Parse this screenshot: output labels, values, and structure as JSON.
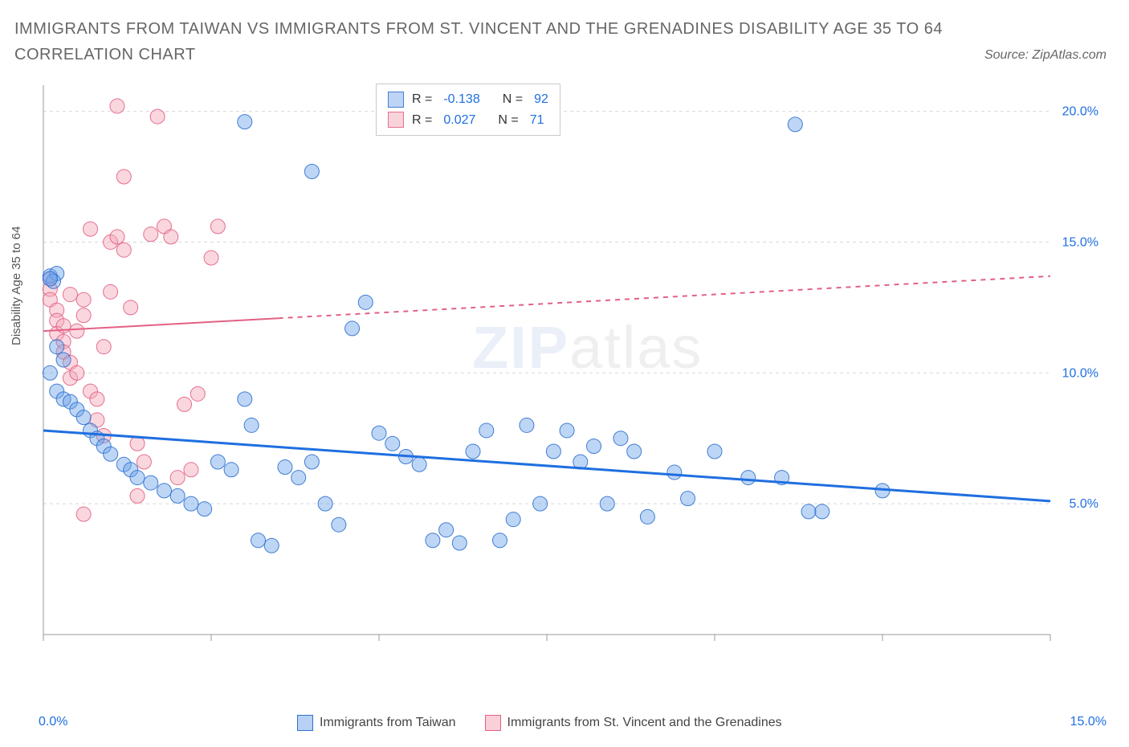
{
  "title": "IMMIGRANTS FROM TAIWAN VS IMMIGRANTS FROM ST. VINCENT AND THE GRENADINES DISABILITY AGE 35 TO 64 CORRELATION CHART",
  "source": "Source: ZipAtlas.com",
  "watermark_zip": "ZIP",
  "watermark_atlas": "atlas",
  "ylabel": "Disability Age 35 to 64",
  "chart": {
    "type": "scatter",
    "xlim": [
      0,
      15
    ],
    "ylim": [
      0,
      21
    ],
    "x_ticks": [
      0,
      2.5,
      5,
      7.5,
      10,
      12.5,
      15
    ],
    "x_tick_labels": [
      "0.0%",
      "",
      "",
      "",
      "",
      "",
      "15.0%"
    ],
    "y_ticks": [
      5,
      10,
      15,
      20
    ],
    "y_tick_labels": [
      "5.0%",
      "10.0%",
      "15.0%",
      "20.0%"
    ],
    "background": "#ffffff",
    "grid_color": "#d8d8d8",
    "axis_color": "#999999",
    "tick_label_color": "#1f6fe0",
    "marker_radius": 9,
    "marker_opacity": 0.45,
    "marker_stroke_opacity": 0.9,
    "series": [
      {
        "name": "Immigrants from Taiwan",
        "color_fill": "#6fa3e8",
        "color_stroke": "#2f71d0",
        "trend": {
          "x0": 0,
          "y0": 7.8,
          "x1": 15,
          "y1": 5.1,
          "solid_until_x": 15,
          "width": 3,
          "color": "#1f6fe0"
        },
        "R": "-0.138",
        "N": "92",
        "points": [
          [
            0.1,
            13.7
          ],
          [
            0.2,
            13.8
          ],
          [
            0.15,
            13.5
          ],
          [
            0.1,
            13.6
          ],
          [
            0.3,
            10.5
          ],
          [
            0.2,
            11.0
          ],
          [
            0.1,
            10.0
          ],
          [
            0.2,
            9.3
          ],
          [
            0.3,
            9.0
          ],
          [
            0.4,
            8.9
          ],
          [
            0.5,
            8.6
          ],
          [
            0.6,
            8.3
          ],
          [
            0.7,
            7.8
          ],
          [
            0.8,
            7.5
          ],
          [
            0.9,
            7.2
          ],
          [
            1.0,
            6.9
          ],
          [
            1.2,
            6.5
          ],
          [
            1.3,
            6.3
          ],
          [
            1.4,
            6.0
          ],
          [
            1.6,
            5.8
          ],
          [
            1.8,
            5.5
          ],
          [
            2.0,
            5.3
          ],
          [
            2.2,
            5.0
          ],
          [
            2.4,
            4.8
          ],
          [
            2.6,
            6.6
          ],
          [
            2.8,
            6.3
          ],
          [
            3.0,
            9.0
          ],
          [
            3.1,
            8.0
          ],
          [
            3.2,
            3.6
          ],
          [
            3.4,
            3.4
          ],
          [
            3.0,
            19.6
          ],
          [
            4.0,
            17.7
          ],
          [
            3.6,
            6.4
          ],
          [
            3.8,
            6.0
          ],
          [
            4.0,
            6.6
          ],
          [
            4.2,
            5.0
          ],
          [
            4.4,
            4.2
          ],
          [
            4.6,
            11.7
          ],
          [
            4.8,
            12.7
          ],
          [
            5.0,
            7.7
          ],
          [
            5.2,
            7.3
          ],
          [
            5.4,
            6.8
          ],
          [
            5.6,
            6.5
          ],
          [
            5.8,
            3.6
          ],
          [
            6.0,
            4.0
          ],
          [
            6.2,
            3.5
          ],
          [
            6.4,
            7.0
          ],
          [
            6.6,
            7.8
          ],
          [
            6.8,
            3.6
          ],
          [
            7.0,
            4.4
          ],
          [
            7.2,
            8.0
          ],
          [
            7.4,
            5.0
          ],
          [
            7.6,
            7.0
          ],
          [
            7.8,
            7.8
          ],
          [
            8.0,
            6.6
          ],
          [
            8.2,
            7.2
          ],
          [
            8.4,
            5.0
          ],
          [
            8.6,
            7.5
          ],
          [
            8.8,
            7.0
          ],
          [
            9.0,
            4.5
          ],
          [
            9.4,
            6.2
          ],
          [
            9.6,
            5.2
          ],
          [
            10.0,
            7.0
          ],
          [
            10.5,
            6.0
          ],
          [
            11.0,
            6.0
          ],
          [
            11.4,
            4.7
          ],
          [
            11.6,
            4.7
          ],
          [
            11.2,
            19.5
          ],
          [
            12.5,
            5.5
          ]
        ]
      },
      {
        "name": "Immigrants from St. Vincent and the Grenadines",
        "color_fill": "#f3a6b8",
        "color_stroke": "#e26184",
        "trend": {
          "x0": 0,
          "y0": 11.6,
          "x1": 15,
          "y1": 13.7,
          "solid_until_x": 3.5,
          "width": 2,
          "color": "#e26184"
        },
        "R": "0.027",
        "N": "71",
        "points": [
          [
            0.1,
            13.6
          ],
          [
            0.1,
            13.2
          ],
          [
            0.1,
            12.8
          ],
          [
            0.2,
            12.4
          ],
          [
            0.2,
            12.0
          ],
          [
            0.2,
            11.5
          ],
          [
            0.3,
            11.8
          ],
          [
            0.3,
            11.2
          ],
          [
            0.3,
            10.8
          ],
          [
            0.4,
            10.4
          ],
          [
            0.4,
            13.0
          ],
          [
            0.4,
            9.8
          ],
          [
            0.5,
            10.0
          ],
          [
            0.5,
            11.6
          ],
          [
            0.6,
            12.2
          ],
          [
            0.6,
            12.8
          ],
          [
            0.7,
            15.5
          ],
          [
            0.7,
            9.3
          ],
          [
            0.8,
            9.0
          ],
          [
            0.8,
            8.2
          ],
          [
            0.9,
            7.6
          ],
          [
            0.9,
            11.0
          ],
          [
            1.0,
            13.1
          ],
          [
            1.0,
            15.0
          ],
          [
            1.1,
            15.2
          ],
          [
            1.1,
            20.2
          ],
          [
            1.2,
            14.7
          ],
          [
            1.2,
            17.5
          ],
          [
            1.3,
            12.5
          ],
          [
            1.4,
            7.3
          ],
          [
            1.5,
            6.6
          ],
          [
            1.6,
            15.3
          ],
          [
            1.7,
            19.8
          ],
          [
            1.8,
            15.6
          ],
          [
            1.9,
            15.2
          ],
          [
            2.0,
            6.0
          ],
          [
            2.1,
            8.8
          ],
          [
            2.2,
            6.3
          ],
          [
            2.3,
            9.2
          ],
          [
            2.5,
            14.4
          ],
          [
            2.6,
            15.6
          ],
          [
            0.6,
            4.6
          ],
          [
            1.4,
            5.3
          ]
        ]
      }
    ]
  },
  "legend_top": {
    "rows": [
      {
        "swatch_fill": "#b7d0f3",
        "swatch_stroke": "#2f71d0",
        "R_label": "R =",
        "R": "-0.138",
        "N_label": "N =",
        "N": "92"
      },
      {
        "swatch_fill": "#f9cfd9",
        "swatch_stroke": "#e26184",
        "R_label": "R =",
        "R": "0.027",
        "N_label": "N =",
        "N": "71"
      }
    ]
  },
  "legend_bottom": {
    "items": [
      {
        "swatch_fill": "#b7d0f3",
        "swatch_stroke": "#2f71d0",
        "label": "Immigrants from Taiwan"
      },
      {
        "swatch_fill": "#f9cfd9",
        "swatch_stroke": "#e26184",
        "label": "Immigrants from St. Vincent and the Grenadines"
      }
    ]
  }
}
